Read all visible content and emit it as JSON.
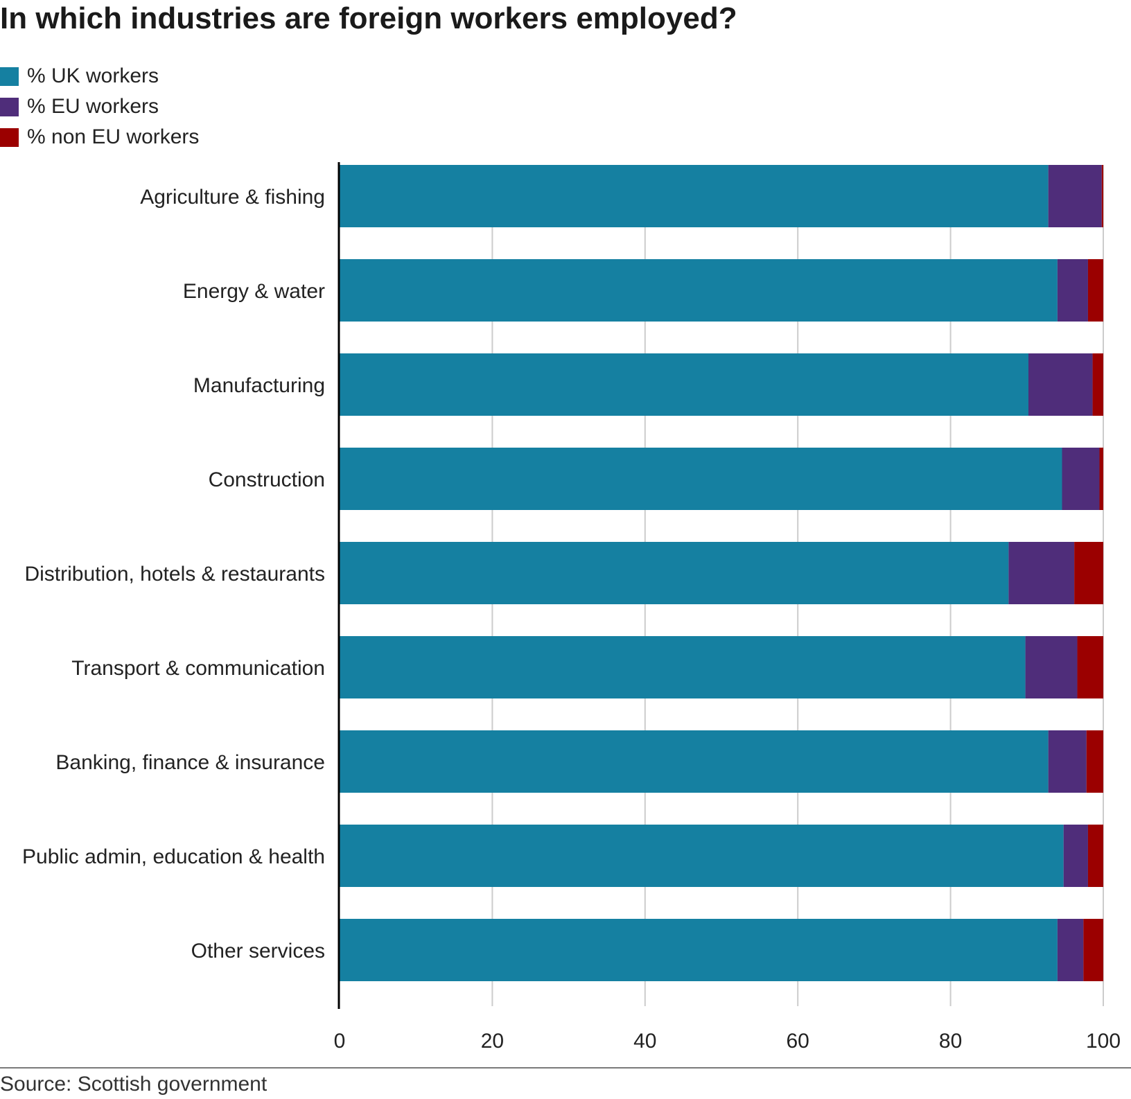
{
  "title": "In which industries are foreign workers employed?",
  "source": "Source: Scottish government",
  "colors": {
    "uk": "#1580a1",
    "eu": "#4f2d7a",
    "non_eu": "#9b0000",
    "grid": "#cccccc",
    "axis": "#000000",
    "text": "#222222"
  },
  "legend": [
    {
      "label": "% UK workers",
      "color": "#1580a1"
    },
    {
      "label": "% EU workers",
      "color": "#4f2d7a"
    },
    {
      "label": "% non EU workers",
      "color": "#9b0000"
    }
  ],
  "chart_data": {
    "type": "bar",
    "orientation": "horizontal",
    "stacked": true,
    "title": "In which industries are foreign workers employed?",
    "categories": [
      "Agriculture & fishing",
      "Energy & water",
      "Manufacturing",
      "Construction",
      "Distribution, hotels & restaurants",
      "Transport & communication",
      "Banking, finance & insurance",
      "Public admin, education & health",
      "Other services"
    ],
    "series": [
      {
        "name": "% UK workers",
        "color": "#1580a1",
        "values": [
          92.8,
          94.0,
          90.2,
          94.6,
          87.6,
          89.8,
          92.8,
          94.8,
          94.0
        ]
      },
      {
        "name": "% EU workers",
        "color": "#4f2d7a",
        "values": [
          7.0,
          4.0,
          8.4,
          4.9,
          8.6,
          6.8,
          5.0,
          3.2,
          3.4
        ]
      },
      {
        "name": "% non EU workers",
        "color": "#9b0000",
        "values": [
          0.2,
          2.0,
          1.4,
          0.5,
          3.8,
          3.4,
          2.2,
          2.0,
          2.6
        ]
      }
    ],
    "xlim": [
      0,
      100
    ],
    "xticks": [
      0,
      20,
      40,
      60,
      80,
      100
    ],
    "xtick_labels": [
      "0",
      "20",
      "40",
      "60",
      "80",
      "100"
    ],
    "grid": "vertical",
    "legend_position": "top-left",
    "xlabel": "",
    "ylabel": ""
  }
}
